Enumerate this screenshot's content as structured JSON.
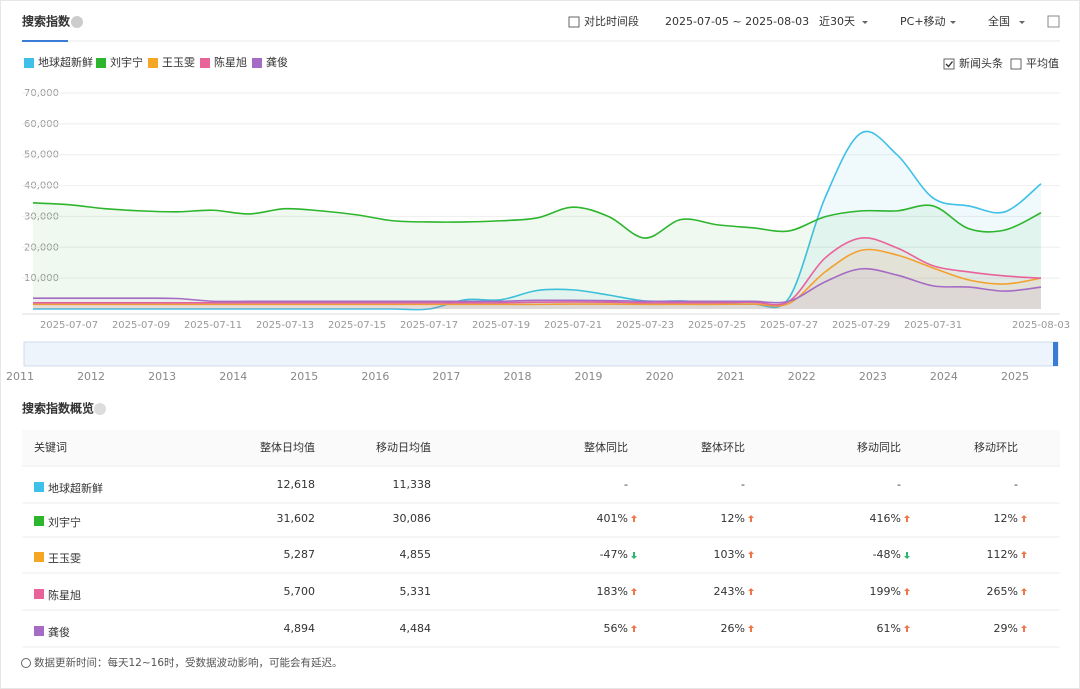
{
  "header": {
    "title": "搜索指数",
    "compare": {
      "label": "对比时间段",
      "checked": false
    },
    "date_range": "2025-07-05 ~ 2025-08-03",
    "period": "近30天",
    "device": "PC+移动",
    "region": "全国"
  },
  "options": [
    {
      "label": "新闻头条",
      "checked": true
    },
    {
      "label": "平均值",
      "checked": false
    }
  ],
  "chart_data": {
    "type": "line",
    "categories": [
      null,
      "2025-07-07",
      null,
      "2025-07-09",
      null,
      "2025-07-11",
      null,
      "2025-07-13",
      null,
      "2025-07-15",
      null,
      "2025-07-17",
      null,
      "2025-07-19",
      null,
      "2025-07-21",
      null,
      "2025-07-23",
      null,
      "2025-07-25",
      null,
      "2025-07-27",
      null,
      "2025-07-29",
      null,
      "2025-07-31",
      null,
      null,
      "2025-08-03"
    ],
    "series": [
      {
        "name": "地球超新鲜",
        "color": "#3ec0e8",
        "values": [
          0,
          0,
          0,
          0,
          0,
          0,
          0,
          0,
          0,
          0,
          0,
          0,
          3000,
          3000,
          6000,
          6200,
          4500,
          2600,
          2600,
          2000,
          1600,
          3600,
          36000,
          57000,
          50000,
          36000,
          33400,
          31500,
          40600
        ]
      },
      {
        "name": "刘宇宁",
        "color": "#2db52d",
        "values": [
          34400,
          33800,
          32500,
          31800,
          31500,
          32000,
          30800,
          32500,
          31800,
          30500,
          28600,
          28200,
          28200,
          28600,
          29500,
          33000,
          29900,
          23000,
          29000,
          27300,
          26300,
          25300,
          29900,
          31800,
          31800,
          33400,
          26000,
          25600,
          31200
        ]
      },
      {
        "name": "王玉雯",
        "color": "#f5a623",
        "values": [
          1500,
          1500,
          1500,
          1500,
          1500,
          1500,
          1500,
          1500,
          1500,
          1500,
          1500,
          1500,
          1500,
          1500,
          1500,
          1600,
          1600,
          1500,
          1500,
          1500,
          1600,
          1800,
          12000,
          19000,
          17500,
          13300,
          9400,
          8100,
          10000
        ]
      },
      {
        "name": "陈星旭",
        "color": "#e8639a",
        "values": [
          2000,
          2000,
          2000,
          2000,
          2000,
          2000,
          2000,
          2000,
          2000,
          2000,
          2000,
          2000,
          2000,
          2000,
          2200,
          2300,
          2200,
          2000,
          2000,
          2000,
          2200,
          2500,
          16500,
          23000,
          19800,
          14000,
          12000,
          10700,
          10000
        ]
      },
      {
        "name": "龚俊",
        "color": "#a66bc4",
        "values": [
          3500,
          3500,
          3500,
          3500,
          3400,
          2500,
          2500,
          2500,
          2500,
          2500,
          2500,
          2500,
          2500,
          2500,
          2800,
          2800,
          2700,
          2500,
          2500,
          2500,
          2500,
          2500,
          8800,
          13000,
          11000,
          7500,
          7100,
          5800,
          7100
        ]
      }
    ],
    "ylim": [
      0,
      70000
    ],
    "yticks": [
      {
        "value": 10000,
        "label": "10,000"
      },
      {
        "value": 20000,
        "label": "20,000"
      },
      {
        "value": 30000,
        "label": "30,000"
      },
      {
        "value": 40000,
        "label": "40,000"
      },
      {
        "value": 50000,
        "label": "50,000"
      },
      {
        "value": 60000,
        "label": "60,000"
      },
      {
        "value": 70000,
        "label": "70,000"
      }
    ],
    "grid": true
  },
  "timeline": {
    "labels": [
      "2011",
      "2012",
      "2013",
      "2014",
      "2015",
      "2016",
      "2017",
      "2018",
      "2019",
      "2020",
      "2021",
      "2022",
      "2023",
      "2024",
      "2025"
    ]
  },
  "overview": {
    "title": "搜索指数概览",
    "columns": [
      "关键词",
      "整体日均值",
      "移动日均值",
      "整体同比",
      "整体环比",
      "移动同比",
      "移动环比"
    ],
    "rows": [
      [
        "地球超新鲜",
        "12,618",
        "11,338",
        "-",
        "-",
        "-",
        "-"
      ],
      [
        "刘宇宁",
        "31,602",
        "30,086",
        "401%",
        "12%",
        "416%",
        "12%"
      ],
      [
        "王玉雯",
        "5,287",
        "4,855",
        "-47%",
        "103%",
        "-48%",
        "112%"
      ],
      [
        "陈星旭",
        "5,700",
        "5,331",
        "183%",
        "243%",
        "199%",
        "265%"
      ],
      [
        "龚俊",
        "4,894",
        "4,484",
        "56%",
        "26%",
        "61%",
        "29%"
      ]
    ]
  },
  "footer": "数据更新时间：每天12~16时，受数据波动影响，可能会有延迟。"
}
